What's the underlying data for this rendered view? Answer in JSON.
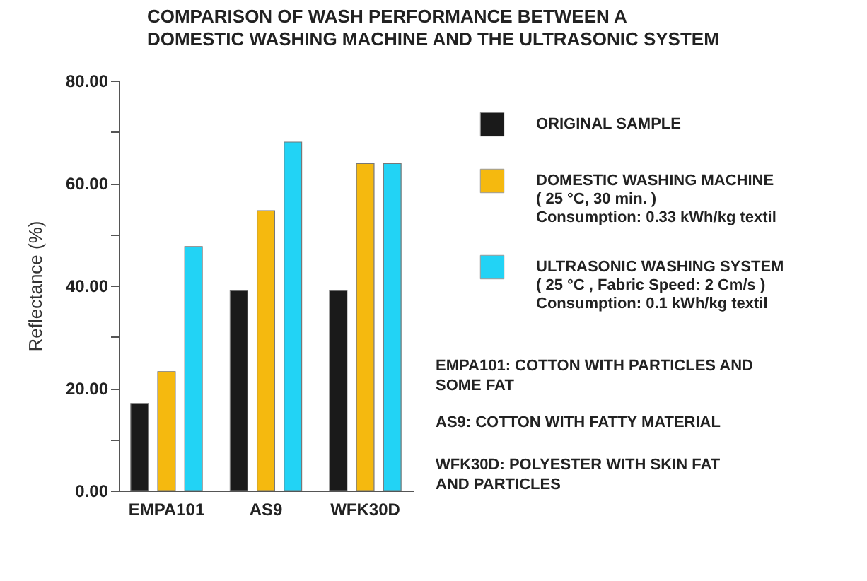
{
  "chart_data": {
    "type": "bar",
    "title": "COMPARISON OF WASH PERFORMANCE BETWEEN A DOMESTIC WASHING MACHINE AND THE ULTRASONIC SYSTEM",
    "ylabel": "Reflectance (%)",
    "categories": [
      "EMPA101",
      "AS9",
      "WFK30D"
    ],
    "series": [
      {
        "name": "ORIGINAL SAMPLE",
        "color": "#1a1a1a",
        "values": [
          17,
          39,
          39
        ]
      },
      {
        "name": "DOMESTIC WASHING MACHINE\n( 25 °C, 30 min. )\nConsumption: 0.33 kWh/kg textil",
        "color": "#f5b90f",
        "values": [
          23.2,
          54.6,
          63.8
        ]
      },
      {
        "name": "ULTRASONIC WASHING SYSTEM\n( 25 °C , Fabric Speed: 2 Cm/s )\nConsumption: 0.1 kWh/kg textil",
        "color": "#22d3f5",
        "values": [
          47.6,
          68,
          63.8
        ]
      }
    ],
    "ylim": [
      0,
      80
    ],
    "yticks": [
      {
        "value": 0,
        "label": "0.00"
      },
      {
        "value": 10,
        "label": null
      },
      {
        "value": 20,
        "label": "20.00"
      },
      {
        "value": 30,
        "label": null
      },
      {
        "value": 40,
        "label": "40.00"
      },
      {
        "value": 50,
        "label": null
      },
      {
        "value": 60,
        "label": "60.00"
      },
      {
        "value": 70,
        "label": null
      },
      {
        "value": 80,
        "label": "80.00"
      }
    ],
    "annotations": [
      "EMPA101: COTTON WITH PARTICLES AND SOME FAT",
      "AS9: COTTON WITH FATTY MATERIAL",
      "WFK30D: POLYESTER WITH SKIN FAT AND PARTICLES"
    ],
    "legend": "right",
    "grid": false
  }
}
